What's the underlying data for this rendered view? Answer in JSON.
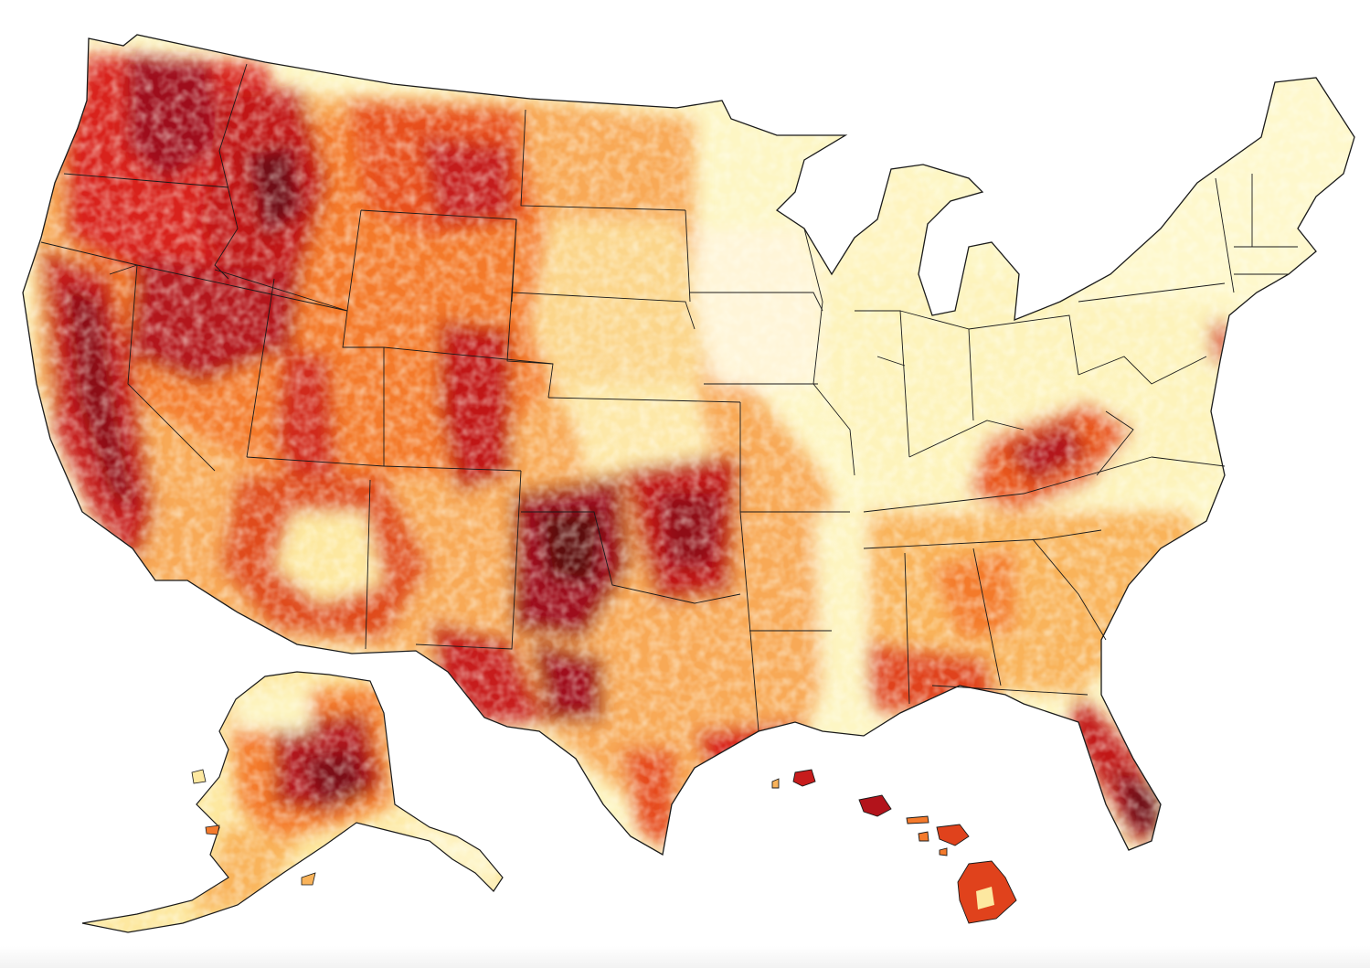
{
  "map": {
    "description_visible_text": "",
    "color_scale": {
      "low": "#fffbd0",
      "low_mid": "#fde8a0",
      "mid": "#f9b35a",
      "mid_high": "#f47a2c",
      "high": "#d9241b",
      "very_high": "#9e0c1a",
      "extreme": "#5c0710",
      "border": "#1a1a1a"
    },
    "regions": [
      "contiguous-us",
      "alaska",
      "hawaii"
    ]
  }
}
